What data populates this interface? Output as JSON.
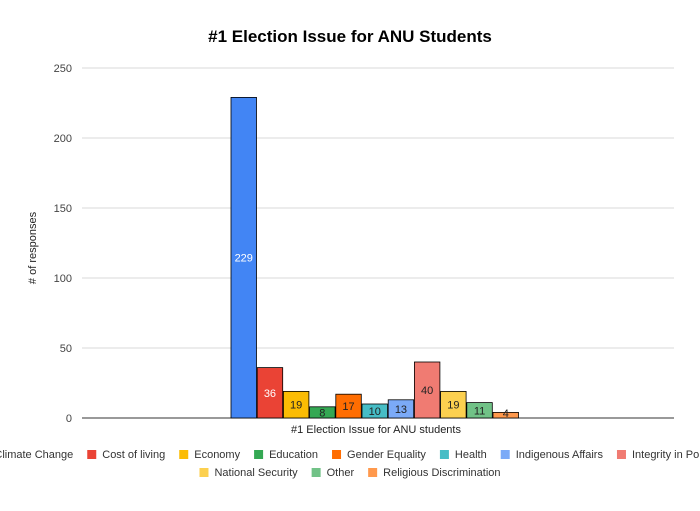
{
  "chart_data": {
    "type": "bar",
    "title": "#1 Election Issue for ANU Students",
    "xlabel": "#1 Election Issue for ANU students",
    "ylabel": "# of responses",
    "ylim": [
      0,
      250
    ],
    "yticks": [
      0,
      50,
      100,
      150,
      200,
      250
    ],
    "grid": true,
    "legend_position": "bottom",
    "categories": [
      "#1 Election Issue for ANU students"
    ],
    "series": [
      {
        "name": "Climate Change",
        "values": [
          229
        ],
        "color": "#4285F4"
      },
      {
        "name": "Cost of living",
        "values": [
          36
        ],
        "color": "#EA4335"
      },
      {
        "name": "Economy",
        "values": [
          19
        ],
        "color": "#FBBC04"
      },
      {
        "name": "Education",
        "values": [
          8
        ],
        "color": "#34A853"
      },
      {
        "name": "Gender Equality",
        "values": [
          17
        ],
        "color": "#FF6D01"
      },
      {
        "name": "Health",
        "values": [
          10
        ],
        "color": "#46BDC6"
      },
      {
        "name": "Indigenous Affairs",
        "values": [
          13
        ],
        "color": "#7BAAF7"
      },
      {
        "name": "Integrity in Politics",
        "values": [
          40
        ],
        "color": "#F07B72"
      },
      {
        "name": "National Security",
        "values": [
          19
        ],
        "color": "#FCD04F"
      },
      {
        "name": "Other",
        "values": [
          11
        ],
        "color": "#71C287"
      },
      {
        "name": "Religious Discrimination",
        "values": [
          4
        ],
        "color": "#FF994D"
      }
    ]
  }
}
